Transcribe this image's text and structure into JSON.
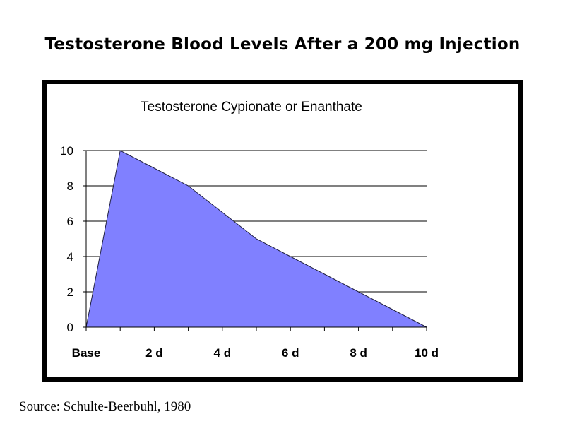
{
  "page": {
    "title": "Testosterone Blood Levels After a 200 mg Injection",
    "source": "Source: Schulte-Beerbuhl, 1980"
  },
  "chart_data": {
    "type": "area",
    "title": "Testosterone Cypionate or Enanthate",
    "xlabel": "",
    "ylabel": "",
    "x": [
      0,
      1,
      2,
      3,
      4,
      5,
      6,
      7,
      8,
      9,
      10
    ],
    "x_tick_labels": [
      "Base",
      "2 d",
      "4 d",
      "6 d",
      "8 d",
      "10 d"
    ],
    "x_tick_positions": [
      0,
      2,
      4,
      6,
      8,
      10
    ],
    "series": [
      {
        "values": [
          0,
          10,
          9,
          8,
          6.5,
          5,
          4,
          3,
          2,
          1,
          0
        ]
      }
    ],
    "ylim": [
      0,
      10
    ],
    "y_ticks": [
      0,
      2,
      4,
      6,
      8,
      10
    ],
    "xlim": [
      0,
      10
    ],
    "grid": "horizontal",
    "legend": "none",
    "colors": {
      "area_fill": "#8080ff",
      "area_stroke": "#202040",
      "plot_background": "#ffffff",
      "frame": "#000000",
      "gridline": "#000000"
    }
  }
}
